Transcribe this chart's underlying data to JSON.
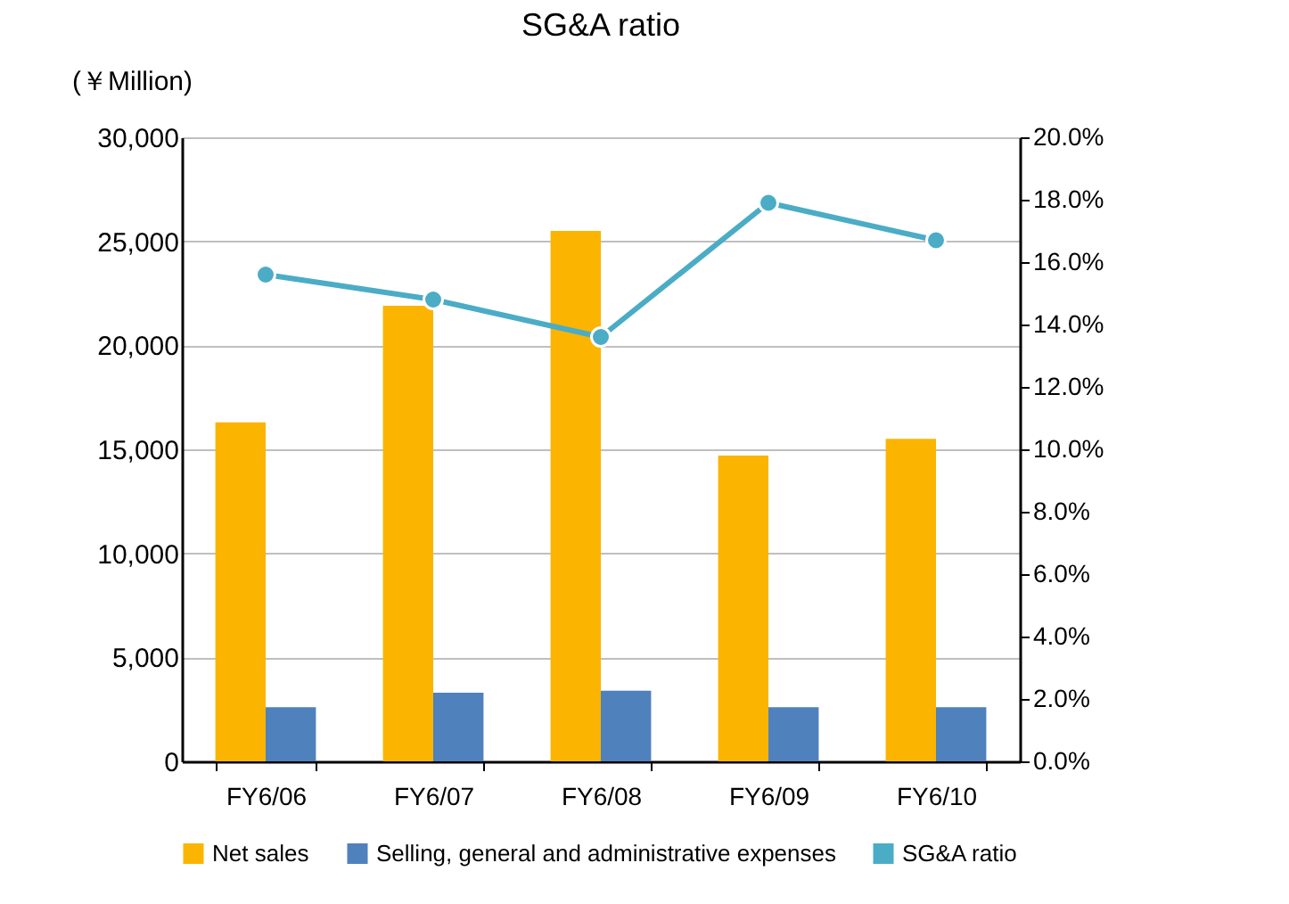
{
  "chart_data": {
    "type": "bar",
    "title": "SG&A ratio",
    "ylabel": "(￥Million)",
    "categories": [
      "FY6/06",
      "FY6/07",
      "FY6/08",
      "FY6/09",
      "FY6/10"
    ],
    "series": [
      {
        "name": "Net sales",
        "color": "#fbb400",
        "values": [
          16300,
          21900,
          25500,
          14700,
          15500
        ]
      },
      {
        "name": "Selling, general and administrative expenses",
        "color": "#4f81bd",
        "values": [
          2600,
          3300,
          3400,
          2600,
          2600
        ]
      },
      {
        "name": "SG&A ratio",
        "type": "line",
        "axis": "y2",
        "color": "#4bacc6",
        "values": [
          15.6,
          14.8,
          13.6,
          17.9,
          16.7
        ]
      }
    ],
    "ylim": [
      0,
      30000
    ],
    "yticks": [
      {
        "value": 0,
        "label": "0"
      },
      {
        "value": 5000,
        "label": "5,000"
      },
      {
        "value": 10000,
        "label": "10,000"
      },
      {
        "value": 15000,
        "label": "15,000"
      },
      {
        "value": 20000,
        "label": "20,000"
      },
      {
        "value": 25000,
        "label": "25,000"
      },
      {
        "value": 30000,
        "label": "30,000"
      }
    ],
    "y2lim": [
      0,
      20
    ],
    "y2ticks": [
      {
        "value": 0,
        "label": "0.0%"
      },
      {
        "value": 2,
        "label": "2.0%"
      },
      {
        "value": 4,
        "label": "4.0%"
      },
      {
        "value": 6,
        "label": "6.0%"
      },
      {
        "value": 8,
        "label": "8.0%"
      },
      {
        "value": 10,
        "label": "10.0%"
      },
      {
        "value": 12,
        "label": "12.0%"
      },
      {
        "value": 14,
        "label": "14.0%"
      },
      {
        "value": 16,
        "label": "16.0%"
      },
      {
        "value": 18,
        "label": "18.0%"
      },
      {
        "value": 20,
        "label": "20.0%"
      }
    ],
    "grid": "y",
    "legend": "bottom",
    "marker": "circle",
    "line_style": "solid"
  }
}
